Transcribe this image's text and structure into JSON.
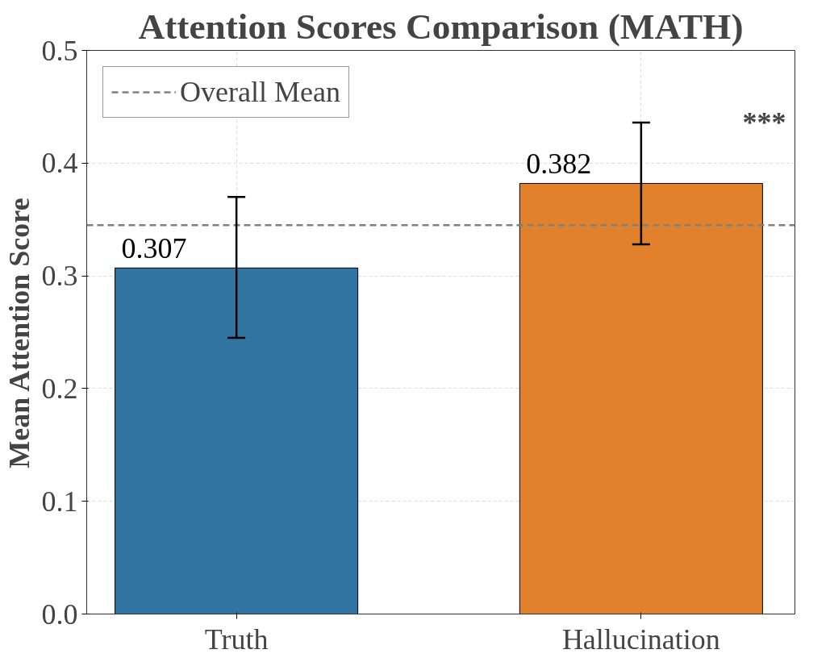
{
  "chart_data": {
    "type": "bar",
    "title": "Attention Scores Comparison (MATH)",
    "ylabel": "Mean Attention Score",
    "categories": [
      "Truth",
      "Hallucination"
    ],
    "values": [
      0.307,
      0.382
    ],
    "colors": [
      "#3274a1",
      "#e1812c"
    ],
    "errors": [
      [
        0.245,
        0.37
      ],
      [
        0.328,
        0.436
      ]
    ],
    "data_labels": true,
    "ylim": [
      0,
      0.5
    ],
    "yticks": [
      {
        "value": 0,
        "label": "0.0"
      },
      0.1,
      0.2,
      0.3,
      0.4,
      0.5
    ],
    "ref_lines": [
      {
        "axis": "y",
        "value": 0.345,
        "label": "Overall Mean",
        "color": "#808080",
        "line_style": "dashed"
      }
    ],
    "annotations": [
      "***"
    ],
    "grid": true,
    "legend": "top left"
  }
}
